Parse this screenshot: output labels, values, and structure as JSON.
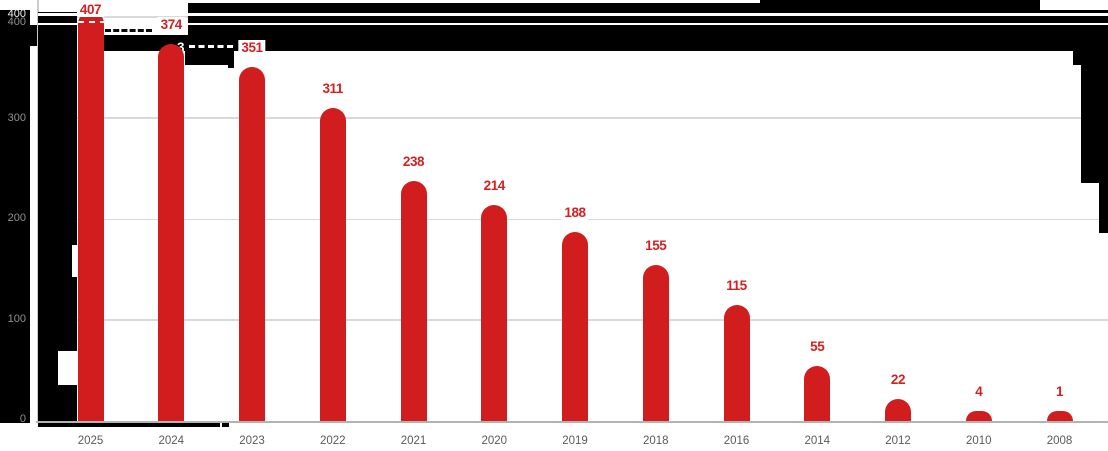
{
  "chart_data": {
    "type": "bar",
    "title": "",
    "xlabel": "",
    "ylabel": "",
    "categories": [
      "2025",
      "2024",
      "2023",
      "2022",
      "2021",
      "2020",
      "2019",
      "2018",
      "2016",
      "2014",
      "2012",
      "2010",
      "2008"
    ],
    "values": [
      407,
      374,
      351,
      311,
      238,
      214,
      188,
      155,
      115,
      55,
      22,
      4,
      1
    ],
    "value_labels": [
      "407",
      "374",
      "351",
      "311",
      "238",
      "214",
      "188",
      "155",
      "115",
      "55",
      "22",
      "4",
      "1"
    ],
    "y_axis_labels": [
      "400",
      "400",
      "300",
      "200",
      "100",
      "0"
    ],
    "duplicated_tick_label": "400",
    "ghost_fragment": "3",
    "ylim": [
      0,
      420
    ],
    "grid": true,
    "legend": "none",
    "colors": {
      "bar": "#d11d1d",
      "value_label": "#d22121",
      "year_label": "#5a5a5a",
      "axis_tick": "#909090",
      "axis_tick_ghost": "#f2f2f2",
      "gridline": "#d9d9d9",
      "baseline": "#b3b3b3",
      "glitch_overlay": "#000000",
      "background": "#ffffff"
    }
  }
}
